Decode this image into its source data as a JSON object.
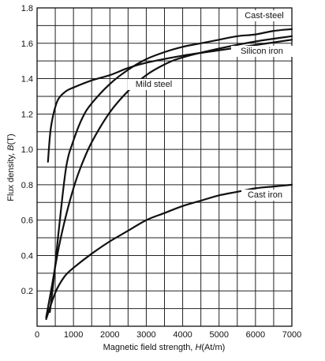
{
  "chart_data": {
    "type": "line",
    "xlabel_prefix": "Magnetic field strength, ",
    "xlabel_var": "H",
    "xlabel_unit": "(At/m)",
    "ylabel_prefix": "Flux density, ",
    "ylabel_var": "B",
    "ylabel_unit": "(T)",
    "xlim": [
      0,
      7000
    ],
    "ylim": [
      0,
      1.8
    ],
    "x_grid_step": 500,
    "y_grid_step": 0.1,
    "grid": true,
    "x_ticks": [
      {
        "value": 0,
        "label": "0"
      },
      {
        "value": 1000,
        "label": "1000"
      },
      {
        "value": 2000,
        "label": "2000"
      },
      {
        "value": 3000,
        "label": "3000"
      },
      {
        "value": 4000,
        "label": "4000"
      },
      {
        "value": 5000,
        "label": "5000"
      },
      {
        "value": 6000,
        "label": "6000"
      },
      {
        "value": 7000,
        "label": "7000"
      }
    ],
    "y_ticks": [
      {
        "value": 0.2,
        "label": "0.2"
      },
      {
        "value": 0.4,
        "label": "0.4"
      },
      {
        "value": 0.6,
        "label": "0.6"
      },
      {
        "value": 0.8,
        "label": "0.8"
      },
      {
        "value": 1.0,
        "label": "1.0"
      },
      {
        "value": 1.2,
        "label": "1.2"
      },
      {
        "value": 1.4,
        "label": "1.4"
      },
      {
        "value": 1.6,
        "label": "1.6"
      },
      {
        "value": 1.8,
        "label": "1.8"
      }
    ],
    "series": [
      {
        "name": "Cast-steel",
        "x": [
          350,
          450,
          600,
          800,
          1000,
          1250,
          1500,
          2000,
          2500,
          3000,
          3500,
          4000,
          4500,
          5000,
          5500,
          6000,
          6500,
          7000
        ],
        "y": [
          0.08,
          0.25,
          0.55,
          0.9,
          1.05,
          1.18,
          1.26,
          1.37,
          1.45,
          1.51,
          1.55,
          1.58,
          1.6,
          1.62,
          1.64,
          1.65,
          1.67,
          1.68
        ]
      },
      {
        "name": "Silicon iron",
        "x": [
          300,
          350,
          400,
          500,
          600,
          800,
          1000,
          1500,
          2000,
          2500,
          3000,
          4000,
          5000,
          6000,
          7000
        ],
        "y": [
          0.93,
          1.07,
          1.15,
          1.24,
          1.29,
          1.33,
          1.35,
          1.39,
          1.42,
          1.46,
          1.49,
          1.53,
          1.56,
          1.59,
          1.62
        ]
      },
      {
        "name": "Mild steel",
        "x": [
          250,
          400,
          600,
          800,
          1000,
          1200,
          1500,
          2000,
          2500,
          3000,
          3500,
          4000,
          5000,
          6000,
          7000
        ],
        "y": [
          0.05,
          0.22,
          0.45,
          0.63,
          0.78,
          0.9,
          1.04,
          1.21,
          1.33,
          1.42,
          1.48,
          1.52,
          1.57,
          1.61,
          1.64
        ]
      },
      {
        "name": "Cast iron",
        "x": [
          250,
          500,
          750,
          1000,
          1500,
          2000,
          2500,
          3000,
          3500,
          4000,
          4500,
          5000,
          5500,
          6000,
          6500,
          7000
        ],
        "y": [
          0.04,
          0.19,
          0.28,
          0.33,
          0.41,
          0.48,
          0.54,
          0.6,
          0.64,
          0.68,
          0.71,
          0.74,
          0.76,
          0.78,
          0.79,
          0.8
        ]
      }
    ]
  }
}
